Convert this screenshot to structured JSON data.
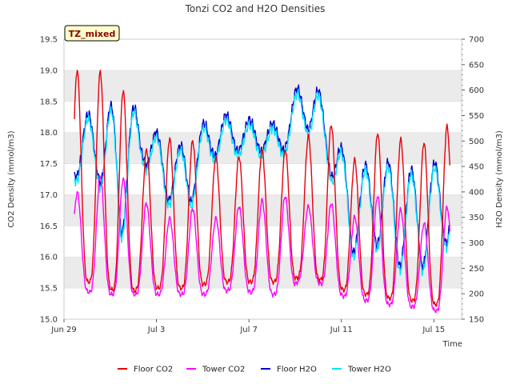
{
  "chart_data": {
    "type": "line",
    "title": "Tonzi CO2 and H2O Densities",
    "xlabel": "Time",
    "ylabel": "CO2 Density (mmol/m3)",
    "y2label": "H2O Density (mmol/m3)",
    "tag": "TZ_mixed",
    "xlim": [
      0,
      17.2
    ],
    "x_ticks": [
      {
        "x": 0,
        "label": "Jun 29"
      },
      {
        "x": 4,
        "label": "Jul 3"
      },
      {
        "x": 8,
        "label": "Jul 7"
      },
      {
        "x": 12,
        "label": "Jul 11"
      },
      {
        "x": 16,
        "label": "Jul 15"
      }
    ],
    "ylim": [
      15.0,
      19.5
    ],
    "y_ticks": [
      "15.0",
      "15.5",
      "16.0",
      "16.5",
      "17.0",
      "17.5",
      "18.0",
      "18.5",
      "19.0",
      "19.5"
    ],
    "y2lim": [
      150,
      700
    ],
    "y2_ticks": [
      "150",
      "200",
      "250",
      "300",
      "350",
      "400",
      "450",
      "500",
      "550",
      "600",
      "650",
      "700"
    ],
    "legend_position": "bottom",
    "colors": {
      "floor_co2": "#e8000b",
      "tower_co2": "#ff00ff",
      "floor_h2o": "#0000cc",
      "tower_h2o": "#00e5ff",
      "band": "#ebebeb"
    },
    "series": [
      {
        "name": "Floor CO2",
        "axis": "left",
        "color": "#e8000b",
        "peaks": [
          19.0,
          19.0,
          18.8,
          17.7,
          17.9,
          17.9,
          17.6,
          17.6,
          17.7,
          17.7,
          17.9,
          18.2,
          17.5,
          18.0,
          17.9,
          17.8,
          18.1
        ],
        "troughs": [
          15.6,
          15.6,
          15.4,
          15.5,
          15.5,
          15.5,
          15.6,
          15.6,
          15.6,
          15.6,
          15.7,
          15.6,
          15.4,
          15.4,
          15.3,
          15.3,
          15.2
        ]
      },
      {
        "name": "Tower CO2",
        "axis": "left",
        "color": "#ff00ff",
        "peaks": [
          17.0,
          17.3,
          17.3,
          16.9,
          16.6,
          16.8,
          16.6,
          16.8,
          16.9,
          17.0,
          16.8,
          16.9,
          16.6,
          17.0,
          16.8,
          16.5,
          16.8
        ],
        "troughs": [
          15.5,
          15.4,
          15.4,
          15.4,
          15.4,
          15.4,
          15.4,
          15.5,
          15.4,
          15.4,
          15.7,
          15.5,
          15.3,
          15.3,
          15.2,
          15.2,
          15.1
        ]
      },
      {
        "name": "Floor H2O",
        "axis": "right",
        "color": "#0000cc",
        "peaks": [
          530,
          570,
          570,
          565,
          480,
          500,
          560,
          545,
          540,
          530,
          650,
          560,
          430,
          470,
          450,
          440,
          470
        ],
        "troughs": [
          430,
          430,
          310,
          460,
          385,
          375,
          470,
          480,
          480,
          480,
          530,
          450,
          280,
          300,
          255,
          250,
          300
        ]
      },
      {
        "name": "Tower H2O",
        "axis": "right",
        "color": "#00e5ff",
        "peaks": [
          520,
          560,
          560,
          555,
          470,
          490,
          550,
          535,
          530,
          520,
          640,
          550,
          420,
          460,
          440,
          430,
          460
        ],
        "troughs": [
          420,
          420,
          300,
          450,
          375,
          365,
          460,
          470,
          470,
          470,
          520,
          440,
          270,
          290,
          245,
          240,
          290
        ]
      }
    ]
  }
}
